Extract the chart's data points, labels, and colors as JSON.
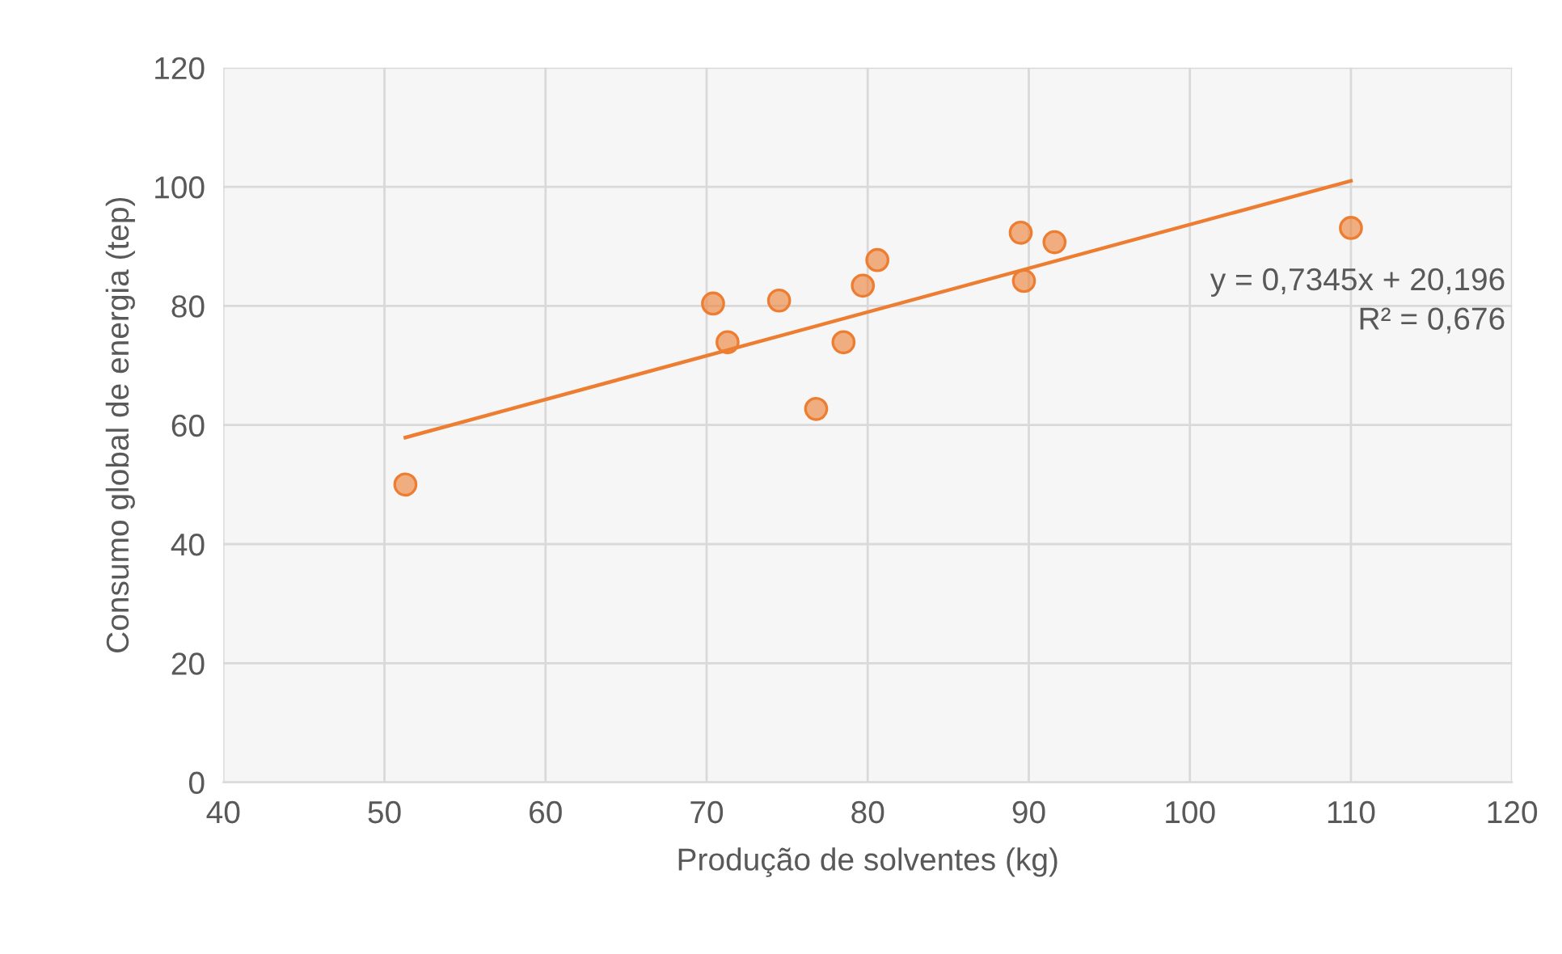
{
  "chart_data": {
    "type": "scatter",
    "xlabel": "Produção de solventes (kg)",
    "ylabel": "Consumo global de energia (tep)",
    "xlim": [
      40,
      120
    ],
    "xticks": [
      40,
      50,
      60,
      70,
      80,
      90,
      100,
      110,
      120
    ],
    "ylim": [
      0,
      120
    ],
    "yticks": [
      0,
      20,
      40,
      60,
      80,
      100,
      120
    ],
    "grid": true,
    "series": [
      {
        "marker": "circle",
        "color": "#ed7d31",
        "x": [
          51.3,
          70.4,
          71.3,
          74.5,
          76.8,
          78.5,
          79.7,
          80.6,
          89.5,
          89.7,
          91.6,
          110.0
        ],
        "values": [
          50.0,
          80.4,
          73.9,
          80.9,
          62.7,
          73.9,
          83.4,
          87.7,
          92.3,
          84.2,
          90.7,
          93.1
        ]
      },
      {
        "type": "line",
        "color": "#ed7d31",
        "line_style": "solid",
        "x": [
          51.3,
          110.0
        ],
        "values": [
          57.9,
          101.0
        ]
      }
    ],
    "annotations": [
      "y = 0,7345x + 20,196",
      "R² = 0,676"
    ]
  }
}
